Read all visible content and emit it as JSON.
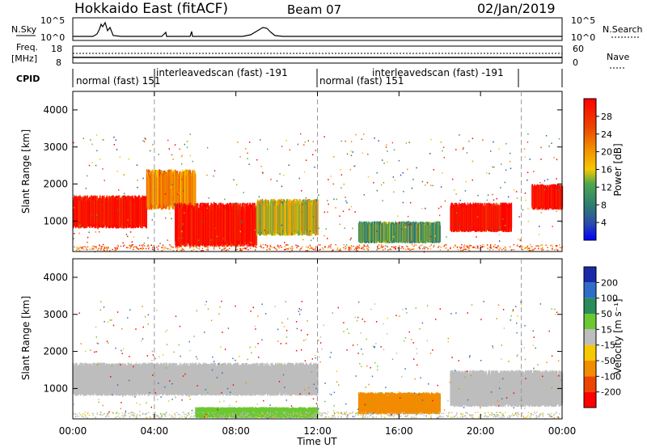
{
  "header": {
    "station": "Hokkaido East (fitACF)",
    "beam": "Beam 07",
    "date": "02/Jan/2019"
  },
  "top_panels": {
    "nsky_label": "N.Sky",
    "nsky_ticks": [
      "10^5",
      "10^0"
    ],
    "nsearch_label": "N.Search",
    "nsearch_ticks": [
      "10^5",
      "10^0"
    ],
    "freq_label": "Freq.",
    "freq_unit": "[MHz]",
    "freq_ticks": [
      "18",
      "8"
    ],
    "nave_label": "Nave",
    "nave_ticks": [
      "60",
      "0"
    ],
    "cpid_label": "CPID",
    "cpid_segments": [
      {
        "label": "normal (fast) 151",
        "start": "00:00",
        "end": "04:00"
      },
      {
        "label": "interleavedscan (fast) -191",
        "start": "04:00",
        "end": "12:00"
      },
      {
        "label": "normal (fast) 151",
        "start": "12:00",
        "end": "16:00"
      },
      {
        "label": "interleavedscan (fast) -191",
        "start": "16:00",
        "end": "22:00"
      }
    ]
  },
  "x_axis": {
    "title": "Time UT",
    "ticks": [
      "00:00",
      "04:00",
      "08:00",
      "12:00",
      "16:00",
      "20:00",
      "00:00"
    ]
  },
  "power_panel": {
    "y_title": "Slant Range [km]",
    "y_ticks": [
      "4000",
      "3000",
      "2000",
      "1000"
    ],
    "colorbar_title": "Power [dB]",
    "colorbar_ticks": [
      "28",
      "24",
      "20",
      "16",
      "12",
      "8",
      "4"
    ],
    "colorbar_colors": [
      "#ff0000",
      "#ee4400",
      "#f28c00",
      "#f6c800",
      "#a6d600",
      "#4ea84e",
      "#2e7e6e",
      "#2a4caa",
      "#0000ff"
    ]
  },
  "velocity_panel": {
    "y_title": "Slant Range [km]",
    "y_ticks": [
      "4000",
      "3000",
      "2000",
      "1000"
    ],
    "colorbar_title": "Velocity [m s⁻¹]",
    "colorbar_ticks": [
      "200",
      "100",
      "50",
      "15",
      "-15",
      "-50",
      "-100",
      "-200"
    ],
    "colorbar_colors": [
      "#1a2aa8",
      "#2e6ec8",
      "#2a8c5a",
      "#6cc832",
      "#bdbdbd",
      "#f6c800",
      "#f28c00",
      "#ee4400",
      "#ff0000"
    ]
  },
  "chart_data": {
    "type": "heatmap",
    "title": "Hokkaido East (fitACF)  Beam 07  02/Jan/2019",
    "xlabel": "Time UT",
    "ylabel": "Slant Range [km]",
    "xlim": [
      "00:00",
      "24:00"
    ],
    "ylim": [
      180,
      4500
    ],
    "power_regions_dB": [
      {
        "t0": 0.0,
        "t1": 3.6,
        "r0": 800,
        "r1": 1700,
        "power": 28
      },
      {
        "t0": 3.6,
        "t1": 6.0,
        "r0": 1300,
        "r1": 2400,
        "power": 20
      },
      {
        "t0": 5.0,
        "t1": 9.0,
        "r0": 300,
        "r1": 1500,
        "power": 28
      },
      {
        "t0": 9.0,
        "t1": 12.0,
        "r0": 600,
        "r1": 1600,
        "power": 16
      },
      {
        "t0": 14.0,
        "t1": 18.0,
        "r0": 400,
        "r1": 1000,
        "power": 12
      },
      {
        "t0": 18.5,
        "t1": 21.5,
        "r0": 700,
        "r1": 1500,
        "power": 28
      },
      {
        "t0": 22.5,
        "t1": 24.0,
        "r0": 1300,
        "r1": 2000,
        "power": 28
      }
    ],
    "velocity_regions_ms": [
      {
        "t0": 0.0,
        "t1": 12.0,
        "r0": 800,
        "r1": 1700,
        "velocity": 0
      },
      {
        "t0": 6.0,
        "t1": 12.0,
        "r0": 200,
        "r1": 500,
        "velocity": 50
      },
      {
        "t0": 14.0,
        "t1": 18.0,
        "r0": 300,
        "r1": 900,
        "velocity": -50
      },
      {
        "t0": 18.5,
        "t1": 24.0,
        "r0": 500,
        "r1": 1500,
        "velocity": 0
      }
    ]
  }
}
